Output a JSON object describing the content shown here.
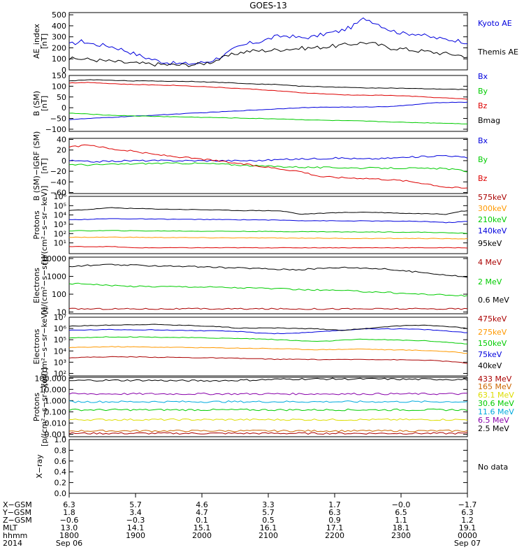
{
  "title": "GOES-13",
  "colors": {
    "black": "#000000",
    "blue": "#0000dd",
    "green": "#00cc00",
    "red": "#dd0000",
    "orange": "#ff9900",
    "darkred": "#aa0000",
    "brown": "#cc6600",
    "yellow": "#dddd00",
    "cyan": "#00aadd",
    "purple": "#8800aa",
    "royal": "#0033ff"
  },
  "chart_data": [
    {
      "type": "line",
      "id": "ae",
      "ylabel": [
        "AE_index",
        "[nT]"
      ],
      "scale": "linear",
      "ylim": [
        0,
        520
      ],
      "ticks": [
        0,
        100,
        200,
        300,
        400,
        500
      ],
      "tick_labels": [
        "0",
        "100",
        "200",
        "300",
        "400",
        "500"
      ],
      "noise": 18,
      "series": [
        {
          "name": "Kyoto AE",
          "label_color": "blue",
          "line_color": "blue",
          "values": [
            230,
            260,
            230,
            220,
            190,
            150,
            110,
            80,
            60,
            55,
            60,
            80,
            130,
            200,
            240,
            260,
            300,
            310,
            290,
            300,
            330,
            350,
            390,
            470,
            420,
            360,
            330,
            330,
            300,
            280,
            270,
            250
          ]
        },
        {
          "name": "Themis AE",
          "label_color": "black",
          "line_color": "black",
          "values": [
            100,
            100,
            90,
            80,
            70,
            60,
            55,
            50,
            45,
            45,
            50,
            70,
            110,
            150,
            170,
            175,
            180,
            190,
            195,
            200,
            210,
            220,
            235,
            250,
            230,
            200,
            190,
            175,
            165,
            150,
            140,
            120
          ]
        }
      ]
    },
    {
      "type": "line",
      "id": "b_sm",
      "ylabel": [
        "B (SM)",
        "[nT]"
      ],
      "scale": "linear",
      "ylim": [
        -110,
        150
      ],
      "ticks": [
        -100,
        -50,
        0,
        50,
        100,
        150
      ],
      "tick_labels": [
        "−100",
        "−50",
        "0",
        "50",
        "100",
        "150"
      ],
      "noise": 1.2,
      "series": [
        {
          "name": "Bx",
          "label_color": "blue",
          "line_color": "blue",
          "values": [
            -55,
            -50,
            -45,
            -40,
            -35,
            -30,
            -25,
            -20,
            -15,
            -10,
            -5,
            0,
            2,
            3,
            3,
            5,
            10,
            20,
            25,
            25
          ]
        },
        {
          "name": "By",
          "label_color": "green",
          "line_color": "green",
          "values": [
            -25,
            -30,
            -35,
            -38,
            -40,
            -42,
            -44,
            -46,
            -48,
            -50,
            -52,
            -55,
            -58,
            -60,
            -62,
            -65,
            -68,
            -70,
            -72,
            -75
          ]
        },
        {
          "name": "Bz",
          "label_color": "red",
          "line_color": "red",
          "values": [
            115,
            118,
            112,
            108,
            106,
            104,
            100,
            95,
            90,
            85,
            78,
            70,
            65,
            60,
            58,
            58,
            55,
            50,
            45,
            40
          ]
        },
        {
          "name": "Bmag",
          "label_color": "black",
          "line_color": "black",
          "values": [
            125,
            130,
            128,
            125,
            124,
            123,
            122,
            118,
            115,
            110,
            108,
            100,
            98,
            95,
            92,
            92,
            90,
            88,
            86,
            85
          ]
        }
      ]
    },
    {
      "type": "line",
      "id": "b_igrf",
      "ylabel": [
        "B (SM)−IGRF (SM)",
        "[nT]"
      ],
      "scale": "linear",
      "ylim": [
        -62,
        42
      ],
      "ticks": [
        -60,
        -40,
        -20,
        0,
        20,
        40
      ],
      "tick_labels": [
        "−60",
        "−40",
        "−20",
        "0",
        "20",
        "40"
      ],
      "noise": 1.5,
      "series": [
        {
          "name": "Bx",
          "label_color": "blue",
          "line_color": "blue",
          "values": [
            0,
            -2,
            -1,
            0,
            0,
            0,
            0,
            0,
            0,
            0,
            2,
            3,
            4,
            5,
            3,
            4,
            6,
            8,
            10,
            5
          ]
        },
        {
          "name": "By",
          "label_color": "green",
          "line_color": "green",
          "values": [
            -7,
            -8,
            -7,
            -6,
            -5,
            -5,
            -5,
            -6,
            -8,
            -10,
            -11,
            -12,
            -13,
            -13,
            -14,
            -14,
            -14,
            -15,
            -15,
            -20
          ]
        },
        {
          "name": "Bz",
          "label_color": "red",
          "line_color": "red",
          "values": [
            25,
            30,
            22,
            18,
            12,
            8,
            4,
            0,
            -5,
            -10,
            -15,
            -20,
            -30,
            -32,
            -33,
            -35,
            -38,
            -43,
            -50,
            -52
          ]
        }
      ]
    },
    {
      "type": "line",
      "id": "protons_lo",
      "ylabel": [
        "Protons",
        "[p/(cm²−s−sr−keV)]"
      ],
      "scale": "log",
      "ylim": [
        0.7,
        1000000
      ],
      "ticks": [
        10,
        100,
        1000,
        10000,
        100000,
        1000000
      ],
      "tick_labels": [
        "10¹",
        "10²",
        "10³",
        "10⁴",
        "10⁵",
        "10⁶"
      ],
      "noise": 0.03,
      "series": [
        {
          "name": "575keV",
          "label_color": "darkred",
          "line_color": "red",
          "values": [
            4,
            4,
            4,
            3,
            3,
            3,
            3,
            3,
            3,
            3,
            3,
            3,
            3,
            3,
            3,
            3,
            3,
            3,
            3,
            3
          ]
        },
        {
          "name": "300keV",
          "label_color": "orange",
          "line_color": "orange",
          "values": [
            40,
            40,
            42,
            40,
            38,
            38,
            36,
            35,
            35,
            34,
            33,
            33,
            32,
            30,
            30,
            30,
            30,
            30,
            28,
            28
          ]
        },
        {
          "name": "210keV",
          "label_color": "green",
          "line_color": "green",
          "values": [
            200,
            200,
            210,
            200,
            190,
            190,
            180,
            180,
            175,
            170,
            165,
            160,
            160,
            150,
            150,
            150,
            140,
            140,
            120,
            110
          ]
        },
        {
          "name": "140keV",
          "label_color": "blue",
          "line_color": "blue",
          "values": [
            3000,
            3500,
            4000,
            3800,
            3600,
            3500,
            3300,
            3200,
            3100,
            3000,
            2800,
            2500,
            2400,
            2300,
            2300,
            2200,
            2100,
            2000,
            1500,
            2000
          ]
        },
        {
          "name": "95keV",
          "label_color": "black",
          "line_color": "black",
          "values": [
            30000,
            40000,
            60000,
            50000,
            45000,
            40000,
            38000,
            35000,
            30000,
            30000,
            28000,
            12000,
            15000,
            18000,
            20000,
            18000,
            15000,
            14000,
            12000,
            30000
          ]
        }
      ]
    },
    {
      "type": "line",
      "id": "electrons_mev",
      "ylabel": [
        "Electrons",
        "[e/(cm²−s−sr)]"
      ],
      "scale": "log",
      "ylim": [
        8,
        12000
      ],
      "ticks": [
        10,
        100,
        1000,
        10000
      ],
      "tick_labels": [
        "10",
        "100",
        "1000",
        "10000"
      ],
      "noise": 0.04,
      "series": [
        {
          "name": "4 MeV",
          "label_color": "darkred",
          "line_color": "darkred",
          "values": [
            15,
            15,
            15,
            15,
            15,
            15,
            15,
            15,
            15,
            15,
            15,
            15,
            15,
            15,
            15,
            15,
            15,
            15,
            15,
            15
          ]
        },
        {
          "name": "2 MeV",
          "label_color": "green",
          "line_color": "green",
          "values": [
            400,
            380,
            300,
            280,
            270,
            270,
            260,
            250,
            230,
            220,
            200,
            180,
            170,
            160,
            140,
            130,
            110,
            100,
            90,
            80
          ]
        },
        {
          "name": "0.6 MeV",
          "label_color": "black",
          "line_color": "black",
          "values": [
            3500,
            4200,
            4500,
            4200,
            4000,
            3800,
            3500,
            3200,
            3000,
            2800,
            2500,
            2400,
            2800,
            3200,
            3000,
            2600,
            2000,
            1600,
            1200,
            900
          ]
        }
      ]
    },
    {
      "type": "line",
      "id": "electrons_kev",
      "ylabel": [
        "Electrons",
        "[e/(cm²−s−sr−keV)]"
      ],
      "scale": "log",
      "ylim": [
        60,
        10000000
      ],
      "ticks": [
        100,
        1000,
        10000,
        100000,
        1000000,
        10000000
      ],
      "tick_labels": [
        "10²",
        "10³",
        "10⁴",
        "10⁵",
        "10⁶",
        "10⁷"
      ],
      "noise": 0.03,
      "series": [
        {
          "name": "475keV",
          "label_color": "darkred",
          "line_color": "darkred",
          "values": [
            2500,
            2800,
            3000,
            3000,
            2800,
            2700,
            2500,
            2400,
            2200,
            2000,
            1800,
            1800,
            1700,
            1700,
            1800,
            1700,
            1600,
            1500,
            1200,
            800
          ]
        },
        {
          "name": "275keV",
          "label_color": "orange",
          "line_color": "orange",
          "values": [
            20000,
            22000,
            24000,
            23000,
            22000,
            21000,
            20000,
            19000,
            18000,
            17000,
            16000,
            14000,
            13000,
            14000,
            15000,
            13000,
            12000,
            11000,
            9000,
            6000
          ]
        },
        {
          "name": "150keV",
          "label_color": "green",
          "line_color": "green",
          "values": [
            150000,
            160000,
            180000,
            175000,
            170000,
            160000,
            150000,
            140000,
            130000,
            120000,
            100000,
            80000,
            70000,
            90000,
            110000,
            100000,
            90000,
            80000,
            60000,
            40000
          ]
        },
        {
          "name": "75keV",
          "label_color": "blue",
          "line_color": "blue",
          "values": [
            700000,
            750000,
            800000,
            780000,
            750000,
            700000,
            650000,
            600000,
            550000,
            400000,
            350000,
            400000,
            500000,
            700000,
            900000,
            950000,
            900000,
            800000,
            600000,
            400000
          ]
        },
        {
          "name": "40keV",
          "label_color": "black",
          "line_color": "black",
          "values": [
            1600000,
            1800000,
            2000000,
            2200000,
            2300000,
            2000000,
            1800000,
            1500000,
            1100000,
            1100000,
            1100000,
            1000000,
            900000,
            700000,
            900000,
            1400000,
            1800000,
            2000000,
            1500000,
            1000000
          ]
        }
      ]
    },
    {
      "type": "line",
      "id": "protons_mev",
      "ylabel": [
        "Protons",
        "[p/(cm²−s−sr−keV)]"
      ],
      "scale": "log",
      "ylim": [
        0.0006,
        120
      ],
      "ticks": [
        0.001,
        0.01,
        0.1,
        1,
        10,
        100
      ],
      "tick_labels": [
        "0.001",
        "0.010",
        "0.100",
        "1.000",
        "10.000",
        "100.000"
      ],
      "noise": 0.08,
      "series": [
        {
          "name": "433 MeV",
          "label_color": "darkred",
          "line_color": "darkred",
          "values": [
            0.0012,
            0.0012,
            0.0012,
            0.0012,
            0.0012,
            0.0012,
            0.0012,
            0.0012,
            0.0012,
            0.0012,
            0.0012,
            0.0012,
            0.0012,
            0.0012,
            0.0012,
            0.0012,
            0.0012,
            0.0012,
            0.0012,
            0.0012
          ]
        },
        {
          "name": "165 MeV",
          "label_color": "brown",
          "line_color": "brown",
          "values": [
            0.002,
            0.002,
            0.002,
            0.002,
            0.002,
            0.002,
            0.002,
            0.002,
            0.002,
            0.002,
            0.002,
            0.002,
            0.002,
            0.002,
            0.002,
            0.002,
            0.002,
            0.002,
            0.002,
            0.002
          ]
        },
        {
          "name": "63.1 MeV",
          "label_color": "yellow",
          "line_color": "yellow",
          "values": [
            0.02,
            0.02,
            0.02,
            0.02,
            0.02,
            0.02,
            0.02,
            0.02,
            0.02,
            0.02,
            0.02,
            0.02,
            0.02,
            0.02,
            0.02,
            0.02,
            0.02,
            0.02,
            0.02,
            0.02
          ]
        },
        {
          "name": "30.6 MeV",
          "label_color": "green",
          "line_color": "green",
          "values": [
            0.15,
            0.15,
            0.15,
            0.15,
            0.15,
            0.15,
            0.15,
            0.15,
            0.15,
            0.15,
            0.15,
            0.15,
            0.15,
            0.15,
            0.15,
            0.15,
            0.15,
            0.15,
            0.15,
            0.15
          ]
        },
        {
          "name": "11.6 MeV",
          "label_color": "cyan",
          "line_color": "cyan",
          "values": [
            0.8,
            0.8,
            0.8,
            0.8,
            0.8,
            0.8,
            0.8,
            0.8,
            0.8,
            0.8,
            0.8,
            0.8,
            0.8,
            0.8,
            0.8,
            0.8,
            0.8,
            0.8,
            0.8,
            0.8
          ]
        },
        {
          "name": "6.5 MeV",
          "label_color": "purple",
          "line_color": "purple",
          "values": [
            4,
            4,
            4,
            4,
            4,
            4,
            4,
            4,
            4,
            4,
            4,
            4,
            4,
            4,
            4,
            4,
            4,
            4,
            4,
            4
          ]
        },
        {
          "name": "2.5 MeV",
          "label_color": "black",
          "line_color": "black",
          "values": [
            60,
            65,
            65,
            65,
            65,
            60,
            60,
            60,
            65,
            70,
            80,
            85,
            85,
            85,
            85,
            85,
            80,
            80,
            80,
            75
          ]
        }
      ]
    },
    {
      "type": "line",
      "id": "xray",
      "ylabel": [
        "X−ray"
      ],
      "scale": "linear",
      "ylim": [
        0,
        1.0
      ],
      "ticks": [
        0.0,
        0.2,
        0.4,
        0.6,
        0.8,
        1.0
      ],
      "tick_labels": [
        "0.0",
        "0.2",
        "0.4",
        "0.6",
        "0.8",
        "1.0"
      ],
      "noise": 0,
      "note": "No data",
      "series": []
    }
  ],
  "xaxis": {
    "row_labels": [
      "X−GSM",
      "Y−GSM",
      "Z−GSM",
      "MLT",
      "hhmm",
      "2014"
    ],
    "columns": [
      [
        "6.3",
        "1.8",
        "−0.6",
        "13.0",
        "1800",
        "Sep 06"
      ],
      [
        "5.7",
        "3.4",
        "−0.3",
        "14.1",
        "1900",
        ""
      ],
      [
        "4.6",
        "4.7",
        "0.1",
        "15.1",
        "2000",
        ""
      ],
      [
        "3.3",
        "5.7",
        "0.5",
        "16.1",
        "2100",
        ""
      ],
      [
        "1.7",
        "6.3",
        "0.9",
        "17.1",
        "2200",
        ""
      ],
      [
        "−0.0",
        "6.5",
        "1.1",
        "18.1",
        "2300",
        ""
      ],
      [
        "−1.7",
        "6.3",
        "1.2",
        "19.1",
        "0000",
        "Sep 07"
      ]
    ]
  }
}
